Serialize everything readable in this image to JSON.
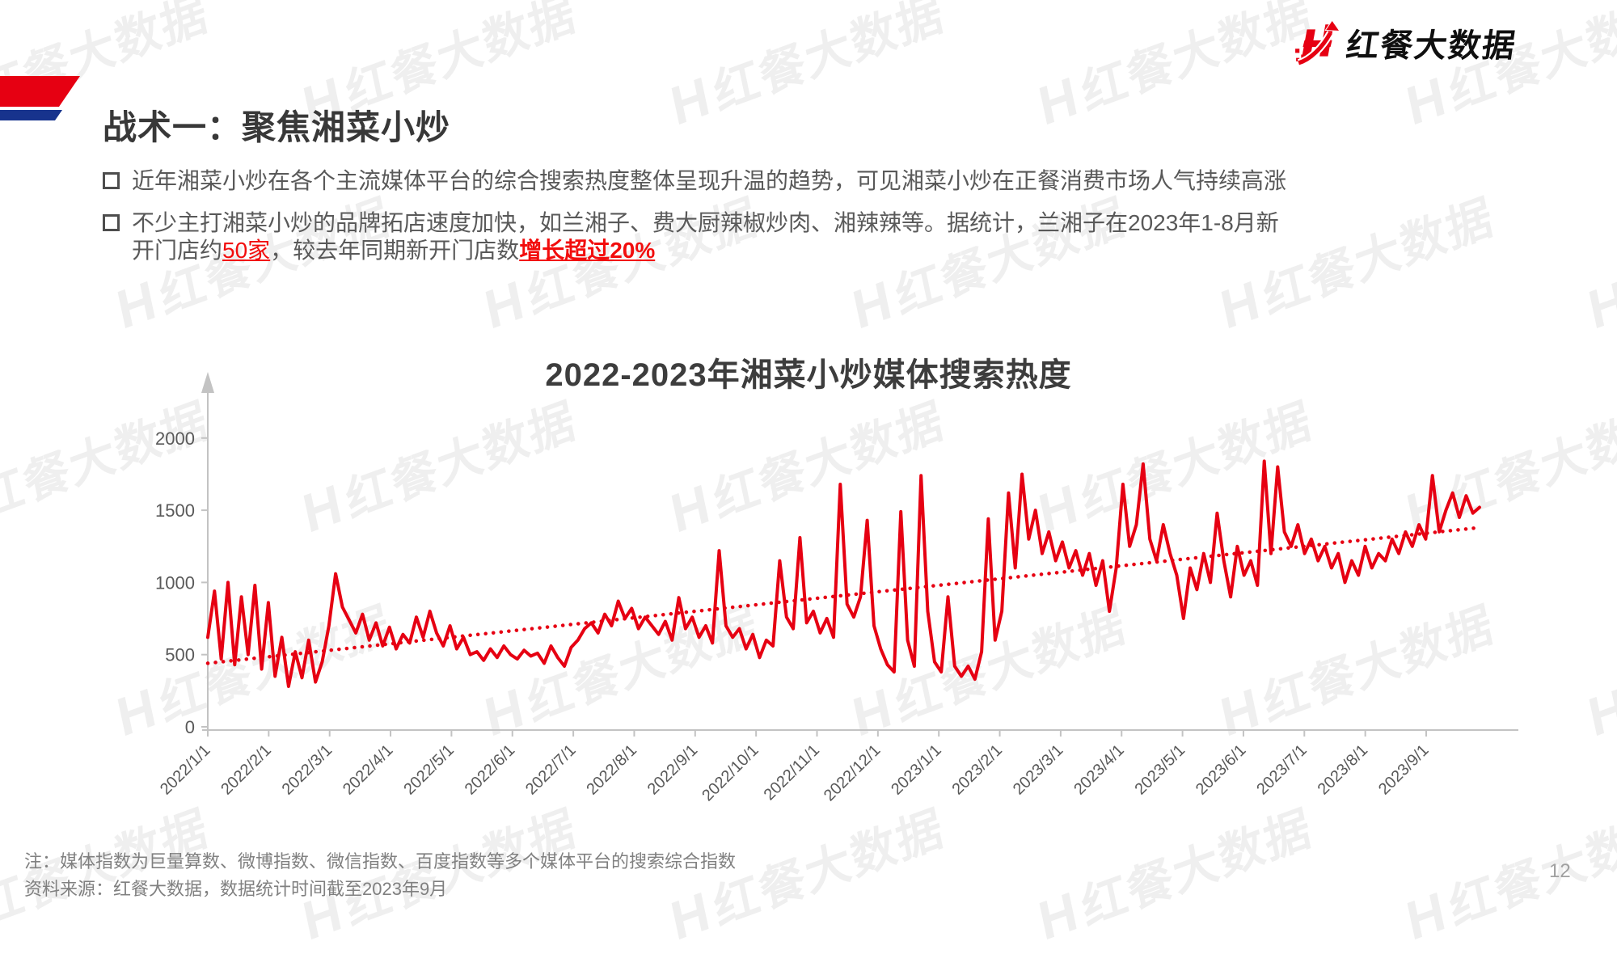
{
  "logo": {
    "brand": "红餐大数据"
  },
  "watermark": {
    "text": "红餐大数据"
  },
  "header": {
    "title": "战术一：聚焦湘菜小炒"
  },
  "bullets": {
    "b1": "近年湘菜小炒在各个主流媒体平台的综合搜索热度整体呈现升温的趋势，可见湘菜小炒在正餐消费市场人气持续高涨",
    "b2_line1": "不少主打湘菜小炒的品牌拓店速度加快，如兰湘子、费大厨辣椒炒肉、湘辣辣等。据统计，兰湘子在2023年1-8月新",
    "b2_line2_pre": "开门店约",
    "b2_red1": "50家",
    "b2_mid": "，较去年同期新开门店数",
    "b2_red2": "增长超过20%"
  },
  "chart_data": {
    "type": "line",
    "title": "2022-2023年湘菜小炒媒体搜索热度",
    "xlabel": "",
    "ylabel": "",
    "ylim": [
      0,
      2300
    ],
    "grid": false,
    "legend": "none",
    "y_ticks": [
      0,
      500,
      1000,
      1500,
      2000
    ],
    "x_tick_labels": [
      "2022/1/1",
      "2022/2/1",
      "2022/3/1",
      "2022/4/1",
      "2022/5/1",
      "2022/6/1",
      "2022/7/1",
      "2022/8/1",
      "2022/9/1",
      "2022/10/1",
      "2022/11/1",
      "2022/12/1",
      "2023/1/1",
      "2023/2/1",
      "2023/3/1",
      "2023/4/1",
      "2023/5/1",
      "2023/6/1",
      "2023/7/1",
      "2023/8/1",
      "2023/9/1"
    ],
    "x_start": "2022/1/1",
    "x_end": "2023/9/25",
    "sample_interval_days": 3.3,
    "series": [
      {
        "name": "湘菜小炒媒体搜索热度指数",
        "values": [
          620,
          940,
          470,
          1000,
          430,
          900,
          500,
          980,
          400,
          860,
          350,
          620,
          280,
          520,
          340,
          600,
          310,
          450,
          700,
          1060,
          830,
          740,
          650,
          780,
          600,
          720,
          560,
          690,
          540,
          640,
          580,
          760,
          620,
          800,
          650,
          560,
          700,
          540,
          620,
          500,
          520,
          460,
          540,
          480,
          560,
          500,
          470,
          530,
          490,
          510,
          440,
          560,
          480,
          420,
          550,
          600,
          680,
          720,
          650,
          780,
          700,
          870,
          750,
          820,
          680,
          760,
          700,
          640,
          730,
          600,
          895,
          680,
          760,
          620,
          700,
          580,
          1220,
          700,
          620,
          680,
          540,
          640,
          480,
          600,
          560,
          1150,
          760,
          680,
          1310,
          720,
          800,
          650,
          750,
          620,
          1680,
          850,
          760,
          900,
          1430,
          700,
          540,
          430,
          380,
          1490,
          600,
          420,
          1740,
          800,
          450,
          380,
          900,
          420,
          350,
          420,
          330,
          520,
          1440,
          600,
          800,
          1620,
          1100,
          1750,
          1300,
          1500,
          1200,
          1350,
          1150,
          1280,
          1100,
          1220,
          1050,
          1200,
          980,
          1150,
          800,
          1100,
          1680,
          1250,
          1400,
          1820,
          1300,
          1150,
          1400,
          1200,
          1050,
          750,
          1100,
          950,
          1200,
          1000,
          1480,
          1150,
          900,
          1250,
          1050,
          1150,
          980,
          1840,
          1200,
          1800,
          1350,
          1250,
          1400,
          1200,
          1300,
          1150,
          1250,
          1100,
          1200,
          1000,
          1150,
          1050,
          1250,
          1100,
          1200,
          1150,
          1300,
          1200,
          1350,
          1250,
          1400,
          1300,
          1740,
          1350,
          1500,
          1620,
          1450,
          1600,
          1480,
          1520
        ]
      }
    ],
    "trendline": {
      "style": "dotted",
      "start_value": 440,
      "end_value": 1380
    }
  },
  "footer": {
    "note1": "注：媒体指数为巨量算数、微博指数、微信指数、百度指数等多个媒体平台的搜索综合指数",
    "note2": "资料来源：红餐大数据，数据统计时间截至2023年9月",
    "page_number": "12"
  },
  "colors": {
    "brand_red": "#e60012",
    "flag_blue": "#17338d",
    "line_red": "#e60012",
    "text_red": "#f20d0d",
    "axis_gray": "#c3c3c3",
    "label_gray": "#595959",
    "watermark_gray": "#efefef"
  }
}
